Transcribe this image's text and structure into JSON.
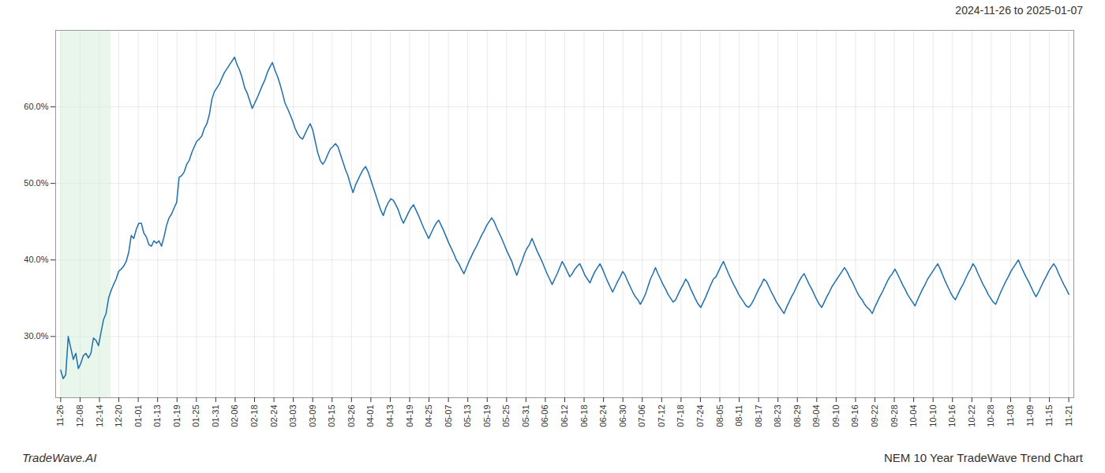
{
  "chart_data": {
    "type": "line",
    "title": "NEM 10 Year TradeWave Trend Chart",
    "subtitle": "2024-11-26 to 2025-01-07",
    "annotations": [
      "TradeWave.AI"
    ],
    "color": "#1f6fad",
    "grid": true,
    "shade": {
      "x": [
        0,
        20
      ],
      "color": "#d4edda"
    },
    "xlim": [
      -2,
      402
    ],
    "xticks": [
      {
        "value": 0,
        "label": "11-26"
      },
      {
        "value": 7.6923,
        "label": "12-08"
      },
      {
        "value": 15.3846,
        "label": "12-14"
      },
      {
        "value": 23.0769,
        "label": "12-20"
      },
      {
        "value": 30.7692,
        "label": "01-01"
      },
      {
        "value": 38.4615,
        "label": "01-13"
      },
      {
        "value": 46.1538,
        "label": "01-19"
      },
      {
        "value": 53.8462,
        "label": "01-25"
      },
      {
        "value": 61.5385,
        "label": "01-31"
      },
      {
        "value": 69.2308,
        "label": "02-06"
      },
      {
        "value": 76.9231,
        "label": "02-18"
      },
      {
        "value": 84.6154,
        "label": "02-24"
      },
      {
        "value": 92.3077,
        "label": "03-03"
      },
      {
        "value": 100,
        "label": "03-09"
      },
      {
        "value": 107.6923,
        "label": "03-15"
      },
      {
        "value": 115.3846,
        "label": "03-26"
      },
      {
        "value": 123.0769,
        "label": "04-01"
      },
      {
        "value": 130.7692,
        "label": "04-13"
      },
      {
        "value": 138.4615,
        "label": "04-19"
      },
      {
        "value": 146.1538,
        "label": "04-25"
      },
      {
        "value": 153.8462,
        "label": "05-07"
      },
      {
        "value": 161.5385,
        "label": "05-13"
      },
      {
        "value": 169.2308,
        "label": "05-19"
      },
      {
        "value": 176.9231,
        "label": "05-25"
      },
      {
        "value": 184.6154,
        "label": "05-31"
      },
      {
        "value": 192.3077,
        "label": "06-06"
      },
      {
        "value": 200,
        "label": "06-12"
      },
      {
        "value": 207.6923,
        "label": "06-18"
      },
      {
        "value": 215.3846,
        "label": "06-24"
      },
      {
        "value": 223.0769,
        "label": "06-30"
      },
      {
        "value": 230.7692,
        "label": "07-06"
      },
      {
        "value": 238.4615,
        "label": "07-12"
      },
      {
        "value": 246.1538,
        "label": "07-18"
      },
      {
        "value": 253.8462,
        "label": "07-24"
      },
      {
        "value": 261.5385,
        "label": "08-05"
      },
      {
        "value": 269.2308,
        "label": "08-11"
      },
      {
        "value": 276.9231,
        "label": "08-17"
      },
      {
        "value": 284.6154,
        "label": "08-23"
      },
      {
        "value": 292.3077,
        "label": "08-29"
      },
      {
        "value": 300,
        "label": "09-04"
      },
      {
        "value": 307.6923,
        "label": "09-10"
      },
      {
        "value": 315.3846,
        "label": "09-16"
      },
      {
        "value": 323.0769,
        "label": "09-22"
      },
      {
        "value": 330.7692,
        "label": "09-28"
      },
      {
        "value": 338.4615,
        "label": "10-04"
      },
      {
        "value": 346.1538,
        "label": "10-10"
      },
      {
        "value": 353.8462,
        "label": "10-16"
      },
      {
        "value": 361.5385,
        "label": "10-22"
      },
      {
        "value": 369.2308,
        "label": "10-28"
      },
      {
        "value": 376.9231,
        "label": "11-03"
      },
      {
        "value": 384.6154,
        "label": "11-09"
      },
      {
        "value": 392.3077,
        "label": "11-15"
      },
      {
        "value": 400,
        "label": "11-21"
      }
    ],
    "ylim": [
      0.22,
      0.7
    ],
    "yticks": [
      {
        "value": 0.3,
        "label": "30.0%"
      },
      {
        "value": 0.4,
        "label": "40.0%"
      },
      {
        "value": 0.5,
        "label": "50.0%"
      },
      {
        "value": 0.6,
        "label": "60.0%"
      }
    ],
    "values": [
      0.256,
      0.245,
      0.25,
      0.3,
      0.285,
      0.27,
      0.278,
      0.258,
      0.265,
      0.275,
      0.278,
      0.272,
      0.278,
      0.298,
      0.295,
      0.288,
      0.305,
      0.322,
      0.33,
      0.35,
      0.36,
      0.368,
      0.375,
      0.385,
      0.388,
      0.392,
      0.398,
      0.41,
      0.432,
      0.428,
      0.44,
      0.448,
      0.448,
      0.435,
      0.43,
      0.42,
      0.418,
      0.425,
      0.422,
      0.425,
      0.418,
      0.43,
      0.445,
      0.455,
      0.46,
      0.468,
      0.475,
      0.508,
      0.51,
      0.515,
      0.525,
      0.53,
      0.54,
      0.548,
      0.555,
      0.558,
      0.562,
      0.572,
      0.578,
      0.59,
      0.61,
      0.62,
      0.625,
      0.63,
      0.638,
      0.645,
      0.65,
      0.655,
      0.66,
      0.665,
      0.655,
      0.648,
      0.638,
      0.625,
      0.618,
      0.608,
      0.598,
      0.605,
      0.612,
      0.62,
      0.628,
      0.635,
      0.645,
      0.652,
      0.658,
      0.648,
      0.64,
      0.63,
      0.618,
      0.605,
      0.598,
      0.59,
      0.582,
      0.572,
      0.565,
      0.56,
      0.558,
      0.565,
      0.572,
      0.578,
      0.57,
      0.555,
      0.54,
      0.53,
      0.525,
      0.53,
      0.538,
      0.545,
      0.548,
      0.552,
      0.548,
      0.538,
      0.528,
      0.518,
      0.51,
      0.498,
      0.488,
      0.498,
      0.505,
      0.512,
      0.518,
      0.522,
      0.515,
      0.505,
      0.495,
      0.485,
      0.475,
      0.465,
      0.458,
      0.468,
      0.475,
      0.48,
      0.478,
      0.472,
      0.465,
      0.455,
      0.448,
      0.455,
      0.462,
      0.468,
      0.472,
      0.465,
      0.458,
      0.45,
      0.442,
      0.435,
      0.428,
      0.435,
      0.442,
      0.448,
      0.452,
      0.445,
      0.438,
      0.43,
      0.422,
      0.415,
      0.408,
      0.4,
      0.395,
      0.388,
      0.382,
      0.39,
      0.398,
      0.405,
      0.412,
      0.418,
      0.425,
      0.432,
      0.438,
      0.445,
      0.45,
      0.455,
      0.45,
      0.442,
      0.435,
      0.428,
      0.42,
      0.412,
      0.405,
      0.398,
      0.388,
      0.38,
      0.39,
      0.398,
      0.408,
      0.415,
      0.42,
      0.428,
      0.42,
      0.412,
      0.405,
      0.398,
      0.39,
      0.382,
      0.375,
      0.368,
      0.375,
      0.382,
      0.39,
      0.398,
      0.392,
      0.385,
      0.378,
      0.382,
      0.388,
      0.392,
      0.395,
      0.388,
      0.38,
      0.375,
      0.37,
      0.378,
      0.385,
      0.39,
      0.395,
      0.388,
      0.38,
      0.372,
      0.365,
      0.358,
      0.365,
      0.372,
      0.378,
      0.385,
      0.38,
      0.372,
      0.365,
      0.358,
      0.352,
      0.348,
      0.342,
      0.348,
      0.355,
      0.365,
      0.375,
      0.382,
      0.39,
      0.382,
      0.375,
      0.368,
      0.362,
      0.355,
      0.35,
      0.345,
      0.348,
      0.355,
      0.362,
      0.368,
      0.375,
      0.37,
      0.362,
      0.355,
      0.348,
      0.342,
      0.338,
      0.345,
      0.352,
      0.36,
      0.368,
      0.375,
      0.378,
      0.385,
      0.392,
      0.398,
      0.39,
      0.382,
      0.375,
      0.368,
      0.362,
      0.355,
      0.35,
      0.345,
      0.34,
      0.338,
      0.342,
      0.348,
      0.355,
      0.362,
      0.368,
      0.375,
      0.372,
      0.365,
      0.358,
      0.352,
      0.345,
      0.34,
      0.335,
      0.33,
      0.338,
      0.345,
      0.352,
      0.358,
      0.365,
      0.372,
      0.378,
      0.382,
      0.375,
      0.368,
      0.362,
      0.355,
      0.348,
      0.342,
      0.338,
      0.345,
      0.352,
      0.358,
      0.365,
      0.37,
      0.375,
      0.38,
      0.385,
      0.39,
      0.385,
      0.378,
      0.372,
      0.365,
      0.358,
      0.352,
      0.348,
      0.342,
      0.338,
      0.335,
      0.33,
      0.338,
      0.345,
      0.352,
      0.358,
      0.365,
      0.372,
      0.378,
      0.382,
      0.388,
      0.382,
      0.375,
      0.368,
      0.362,
      0.355,
      0.35,
      0.345,
      0.34,
      0.348,
      0.355,
      0.362,
      0.368,
      0.375,
      0.38,
      0.385,
      0.39,
      0.395,
      0.388,
      0.38,
      0.372,
      0.365,
      0.358,
      0.352,
      0.348,
      0.355,
      0.362,
      0.368,
      0.375,
      0.382,
      0.388,
      0.395,
      0.39,
      0.382,
      0.375,
      0.368,
      0.362,
      0.355,
      0.35,
      0.345,
      0.342,
      0.35,
      0.358,
      0.365,
      0.372,
      0.378,
      0.385,
      0.39,
      0.395,
      0.4,
      0.392,
      0.385,
      0.378,
      0.372,
      0.365,
      0.358,
      0.352,
      0.358,
      0.365,
      0.372,
      0.378,
      0.385,
      0.39,
      0.395,
      0.39,
      0.382,
      0.375,
      0.368,
      0.362,
      0.355
    ]
  }
}
